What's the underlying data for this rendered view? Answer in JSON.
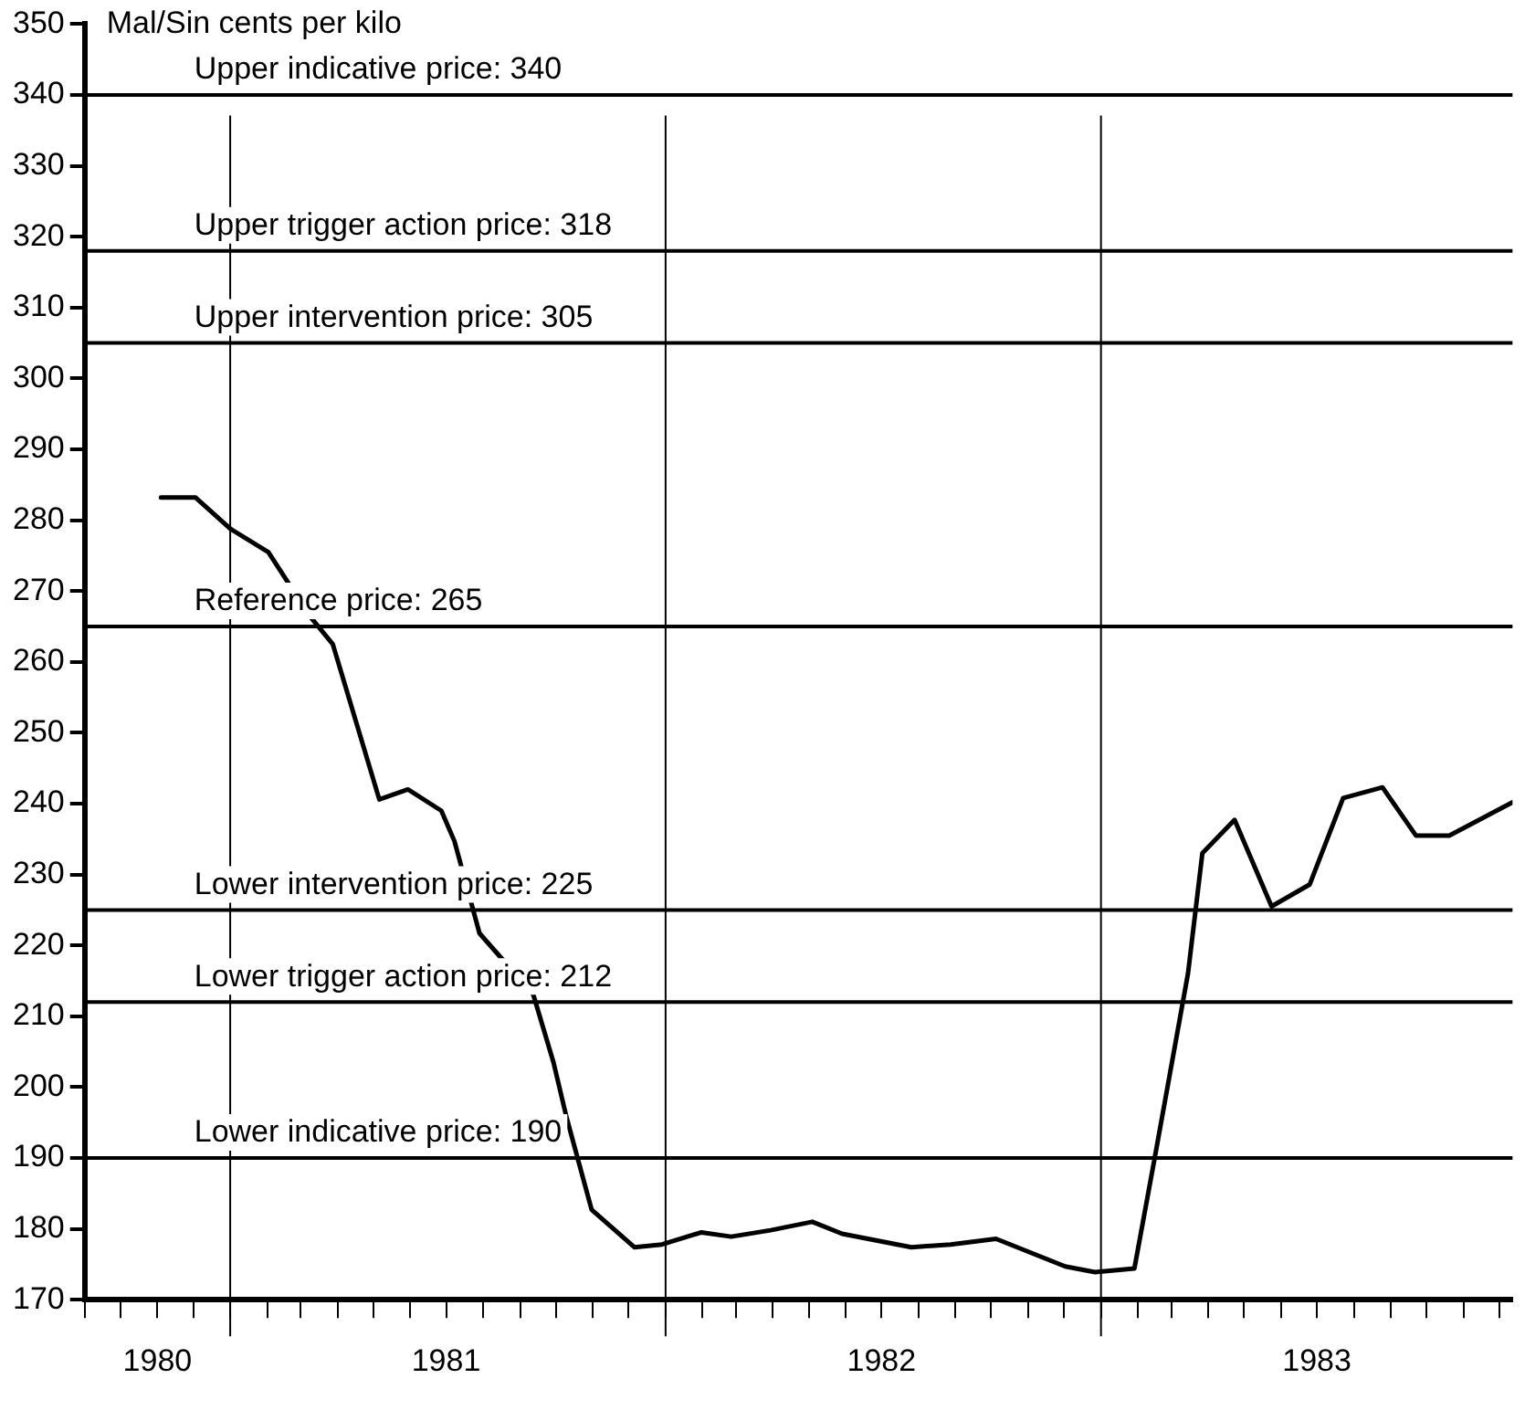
{
  "chart_data": {
    "type": "line",
    "ylabel": "Mal/Sin cents per kilo",
    "series": [
      {
        "color": "#000000",
        "x": [
          "1980-11-04",
          "1980-12-03",
          "1981-01-01",
          "1981-02-02",
          "1981-03-09",
          "1981-03-28",
          "1981-05-06",
          "1981-05-30",
          "1981-06-27",
          "1981-07-08",
          "1981-07-29",
          "1981-09-12",
          "1981-09-29",
          "1981-10-10",
          "1981-10-31",
          "1981-12-06",
          "1981-12-29",
          "1982-01-31",
          "1982-02-25",
          "1982-03-30",
          "1982-05-04",
          "1982-05-29",
          "1982-07-26",
          "1982-08-28",
          "1982-10-05",
          "1982-12-02",
          "1982-12-27",
          "1983-01-29",
          "1983-02-16",
          "1983-03-15",
          "1983-03-27",
          "1983-04-23",
          "1983-05-24",
          "1983-06-25",
          "1983-07-23",
          "1983-08-25",
          "1983-09-22",
          "1983-10-20",
          "1983-12-12"
        ],
        "values": [
          283.2,
          283.2,
          278.8,
          275.5,
          266.4,
          262.5,
          240.6,
          242,
          239,
          234.7,
          221.7,
          213.1,
          203.5,
          195.7,
          182.7,
          177.4,
          177.8,
          179.5,
          178.9,
          179.8,
          181,
          179.3,
          177.4,
          177.8,
          178.6,
          174.7,
          173.9,
          174.4,
          190.9,
          216.1,
          233,
          237.7,
          225.5,
          228.6,
          240.8,
          242.3,
          235.5,
          235.5,
          240.2
        ]
      }
    ],
    "xlim": [
      "1980-09-01",
      "1983-12-12"
    ],
    "xticks": [
      {
        "value": "1980-09-01",
        "label": null
      },
      {
        "value": "1980-10-01",
        "label": null
      },
      {
        "value": "1980-11-01",
        "label": "1980"
      },
      {
        "value": "1980-12-01",
        "label": null
      },
      {
        "value": "1981-01-01",
        "label": null
      },
      {
        "value": "1981-02-01",
        "label": null
      },
      {
        "value": "1981-03-01",
        "label": null
      },
      {
        "value": "1981-04-01",
        "label": null
      },
      {
        "value": "1981-05-01",
        "label": null
      },
      {
        "value": "1981-06-01",
        "label": null
      },
      {
        "value": "1981-07-01",
        "label": "1981"
      },
      {
        "value": "1981-08-01",
        "label": null
      },
      {
        "value": "1981-09-01",
        "label": null
      },
      {
        "value": "1981-10-01",
        "label": null
      },
      {
        "value": "1981-11-01",
        "label": null
      },
      {
        "value": "1981-12-01",
        "label": null
      },
      {
        "value": "1982-01-01",
        "label": null
      },
      {
        "value": "1982-02-01",
        "label": null
      },
      {
        "value": "1982-03-01",
        "label": null
      },
      {
        "value": "1982-04-01",
        "label": null
      },
      {
        "value": "1982-05-01",
        "label": null
      },
      {
        "value": "1982-06-01",
        "label": null
      },
      {
        "value": "1982-07-01",
        "label": "1982"
      },
      {
        "value": "1982-08-01",
        "label": null
      },
      {
        "value": "1982-09-01",
        "label": null
      },
      {
        "value": "1982-10-01",
        "label": null
      },
      {
        "value": "1982-11-01",
        "label": null
      },
      {
        "value": "1982-12-01",
        "label": null
      },
      {
        "value": "1983-01-01",
        "label": null
      },
      {
        "value": "1983-02-01",
        "label": null
      },
      {
        "value": "1983-03-01",
        "label": null
      },
      {
        "value": "1983-04-01",
        "label": null
      },
      {
        "value": "1983-05-01",
        "label": null
      },
      {
        "value": "1983-06-01",
        "label": null
      },
      {
        "value": "1983-07-01",
        "label": "1983"
      },
      {
        "value": "1983-08-01",
        "label": null
      },
      {
        "value": "1983-09-01",
        "label": null
      },
      {
        "value": "1983-10-01",
        "label": null
      },
      {
        "value": "1983-11-01",
        "label": null
      },
      {
        "value": "1983-12-01",
        "label": null
      }
    ],
    "ylim": [
      170,
      350
    ],
    "yticks": [
      170,
      180,
      190,
      200,
      210,
      220,
      230,
      240,
      250,
      260,
      270,
      280,
      290,
      300,
      310,
      320,
      330,
      340,
      350
    ],
    "ref_lines": [
      {
        "axis": "y",
        "value": 340,
        "label": "Upper indicative price: 340"
      },
      {
        "axis": "y",
        "value": 318,
        "label": "Upper trigger action price: 318"
      },
      {
        "axis": "y",
        "value": 305,
        "label": "Upper intervention price: 305"
      },
      {
        "axis": "y",
        "value": 265,
        "label": "Reference price: 265"
      },
      {
        "axis": "y",
        "value": 225,
        "label": "Lower intervention price: 225"
      },
      {
        "axis": "y",
        "value": 212,
        "label": "Lower trigger action price: 212"
      },
      {
        "axis": "y",
        "value": 190,
        "label": "Lower indicative price: 190"
      },
      {
        "axis": "x",
        "value": "1981-01-01"
      },
      {
        "axis": "x",
        "value": "1982-01-01"
      },
      {
        "axis": "x",
        "value": "1983-01-01"
      }
    ],
    "grid": false,
    "legend": false,
    "marker": "none",
    "line_style": "solid"
  }
}
